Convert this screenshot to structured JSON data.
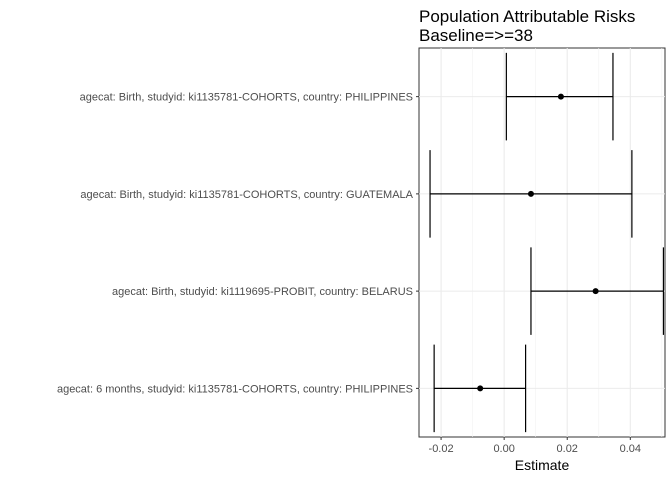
{
  "chart_data": {
    "type": "errorbar",
    "title": "Population Attributable Risks",
    "subtitle": "Baseline=>=38",
    "xlabel": "Estimate",
    "ylabel": "",
    "xlim": [
      -0.027,
      0.051
    ],
    "xticks": [
      -0.02,
      0.0,
      0.02,
      0.04
    ],
    "xtick_labels": [
      "-0.02",
      "0.00",
      "0.02",
      "0.04"
    ],
    "grid": true,
    "categories": [
      "agecat: Birth, studyid: ki1135781-COHORTS, country: PHILIPPINES",
      "agecat: Birth, studyid: ki1135781-COHORTS, country: GUATEMALA",
      "agecat: Birth, studyid: ki1119695-PROBIT, country: BELARUS",
      "agecat: 6 months, studyid: ki1135781-COHORTS, country: PHILIPPINES"
    ],
    "estimates": [
      0.018,
      0.0085,
      0.029,
      -0.0076
    ],
    "lower": [
      0.0007,
      -0.0235,
      0.0085,
      -0.0222
    ],
    "upper": [
      0.0345,
      0.0405,
      0.0505,
      0.0068
    ]
  }
}
